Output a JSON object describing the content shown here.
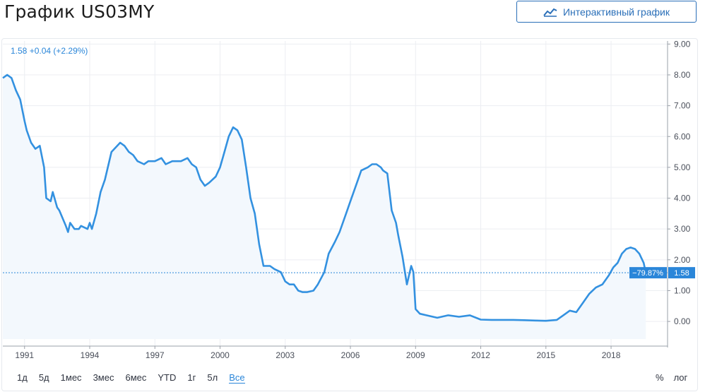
{
  "page": {
    "title": "График US03MY",
    "interactive_button": "Интерактивный график",
    "chart_icon": "chart-line-icon"
  },
  "legend": {
    "text": "1.58 +0.04 (+2.29%)"
  },
  "price_marker": {
    "change_label": "−79.87%",
    "price_label": "1.58",
    "value": 1.58
  },
  "range_buttons": [
    "1д",
    "5д",
    "1мес",
    "3мес",
    "6мес",
    "YTD",
    "1г",
    "5л",
    "Все"
  ],
  "active_range": "Все",
  "scale_options": [
    "%",
    "лог"
  ],
  "colors": {
    "line": "#3391e0",
    "fill": "#f3f8fd",
    "grid": "#eceef2",
    "marker": "#2a86d9"
  },
  "chart_data": {
    "type": "area",
    "title": "",
    "xlabel": "",
    "ylabel": "",
    "xlim": [
      1990.0,
      2020.6
    ],
    "ylim": [
      -0.8,
      9.1
    ],
    "y_ticks": [
      0,
      1,
      2,
      3,
      4,
      5,
      6,
      7,
      8,
      9
    ],
    "y_tick_labels": [
      "0.00",
      "1.00",
      "2.00",
      "3.00",
      "4.00",
      "5.00",
      "6.00",
      "7.00",
      "8.00",
      "9.00"
    ],
    "x_ticks": [
      1991,
      1994,
      1997,
      2000,
      2003,
      2006,
      2009,
      2012,
      2015,
      2018
    ],
    "x_tick_labels": [
      "1991",
      "1994",
      "1997",
      "2000",
      "2003",
      "2006",
      "2009",
      "2012",
      "2015",
      "2018"
    ],
    "grid": true,
    "series": [
      {
        "x": [
          1990.0,
          1990.2,
          1990.4,
          1990.6,
          1990.8,
          1991.0,
          1991.1,
          1991.3,
          1991.5,
          1991.7,
          1991.9,
          1992.0,
          1992.2,
          1992.3,
          1992.5,
          1992.6,
          1992.9,
          1993.0,
          1993.1,
          1993.3,
          1993.5,
          1993.6,
          1993.9,
          1994.0,
          1994.1,
          1994.3,
          1994.5,
          1994.7,
          1995.0,
          1995.4,
          1995.6,
          1995.8,
          1996.0,
          1996.2,
          1996.5,
          1996.7,
          1997.0,
          1997.3,
          1997.5,
          1997.8,
          1998.0,
          1998.2,
          1998.5,
          1998.7,
          1998.9,
          1999.1,
          1999.3,
          1999.5,
          1999.8,
          2000.0,
          2000.2,
          2000.4,
          2000.6,
          2000.8,
          2001.0,
          2001.2,
          2001.4,
          2001.6,
          2001.8,
          2002.0,
          2002.3,
          2002.5,
          2002.8,
          2003.0,
          2003.2,
          2003.4,
          2003.6,
          2003.8,
          2004.0,
          2004.3,
          2004.5,
          2004.8,
          2005.0,
          2005.3,
          2005.5,
          2005.8,
          2006.0,
          2006.3,
          2006.5,
          2006.8,
          2007.0,
          2007.2,
          2007.4,
          2007.5,
          2007.7,
          2007.9,
          2008.1,
          2008.2,
          2008.4,
          2008.6,
          2008.8,
          2008.9,
          2009.0,
          2009.2,
          2009.5,
          2010.0,
          2010.5,
          2011.0,
          2011.5,
          2012.0,
          2012.5,
          2013.0,
          2013.5,
          2014.0,
          2014.5,
          2015.0,
          2015.5,
          2015.8,
          2016.1,
          2016.4,
          2016.7,
          2017.0,
          2017.3,
          2017.6,
          2017.9,
          2018.1,
          2018.3,
          2018.5,
          2018.7,
          2018.9,
          2019.1,
          2019.3,
          2019.5,
          2019.6
        ],
        "y": [
          7.9,
          8.0,
          7.9,
          7.5,
          7.2,
          6.5,
          6.2,
          5.8,
          5.6,
          5.7,
          5.0,
          4.0,
          3.9,
          4.2,
          3.7,
          3.6,
          3.1,
          2.9,
          3.2,
          3.0,
          3.0,
          3.1,
          3.0,
          3.2,
          3.0,
          3.5,
          4.2,
          4.6,
          5.5,
          5.8,
          5.7,
          5.5,
          5.4,
          5.2,
          5.1,
          5.2,
          5.2,
          5.3,
          5.1,
          5.2,
          5.2,
          5.2,
          5.3,
          5.1,
          5.0,
          4.6,
          4.4,
          4.5,
          4.7,
          5.0,
          5.5,
          6.0,
          6.3,
          6.2,
          5.9,
          5.0,
          4.0,
          3.5,
          2.5,
          1.8,
          1.8,
          1.7,
          1.6,
          1.3,
          1.2,
          1.2,
          1.0,
          0.95,
          0.95,
          1.0,
          1.2,
          1.6,
          2.2,
          2.6,
          2.9,
          3.5,
          3.9,
          4.5,
          4.9,
          5.0,
          5.1,
          5.1,
          5.0,
          4.9,
          4.8,
          3.6,
          3.2,
          2.8,
          2.1,
          1.2,
          1.8,
          1.6,
          0.4,
          0.25,
          0.2,
          0.12,
          0.2,
          0.15,
          0.2,
          0.06,
          0.05,
          0.05,
          0.05,
          0.04,
          0.03,
          0.02,
          0.05,
          0.2,
          0.35,
          0.3,
          0.6,
          0.9,
          1.1,
          1.2,
          1.5,
          1.75,
          1.9,
          2.2,
          2.35,
          2.4,
          2.35,
          2.2,
          1.9,
          1.58
        ]
      }
    ]
  }
}
